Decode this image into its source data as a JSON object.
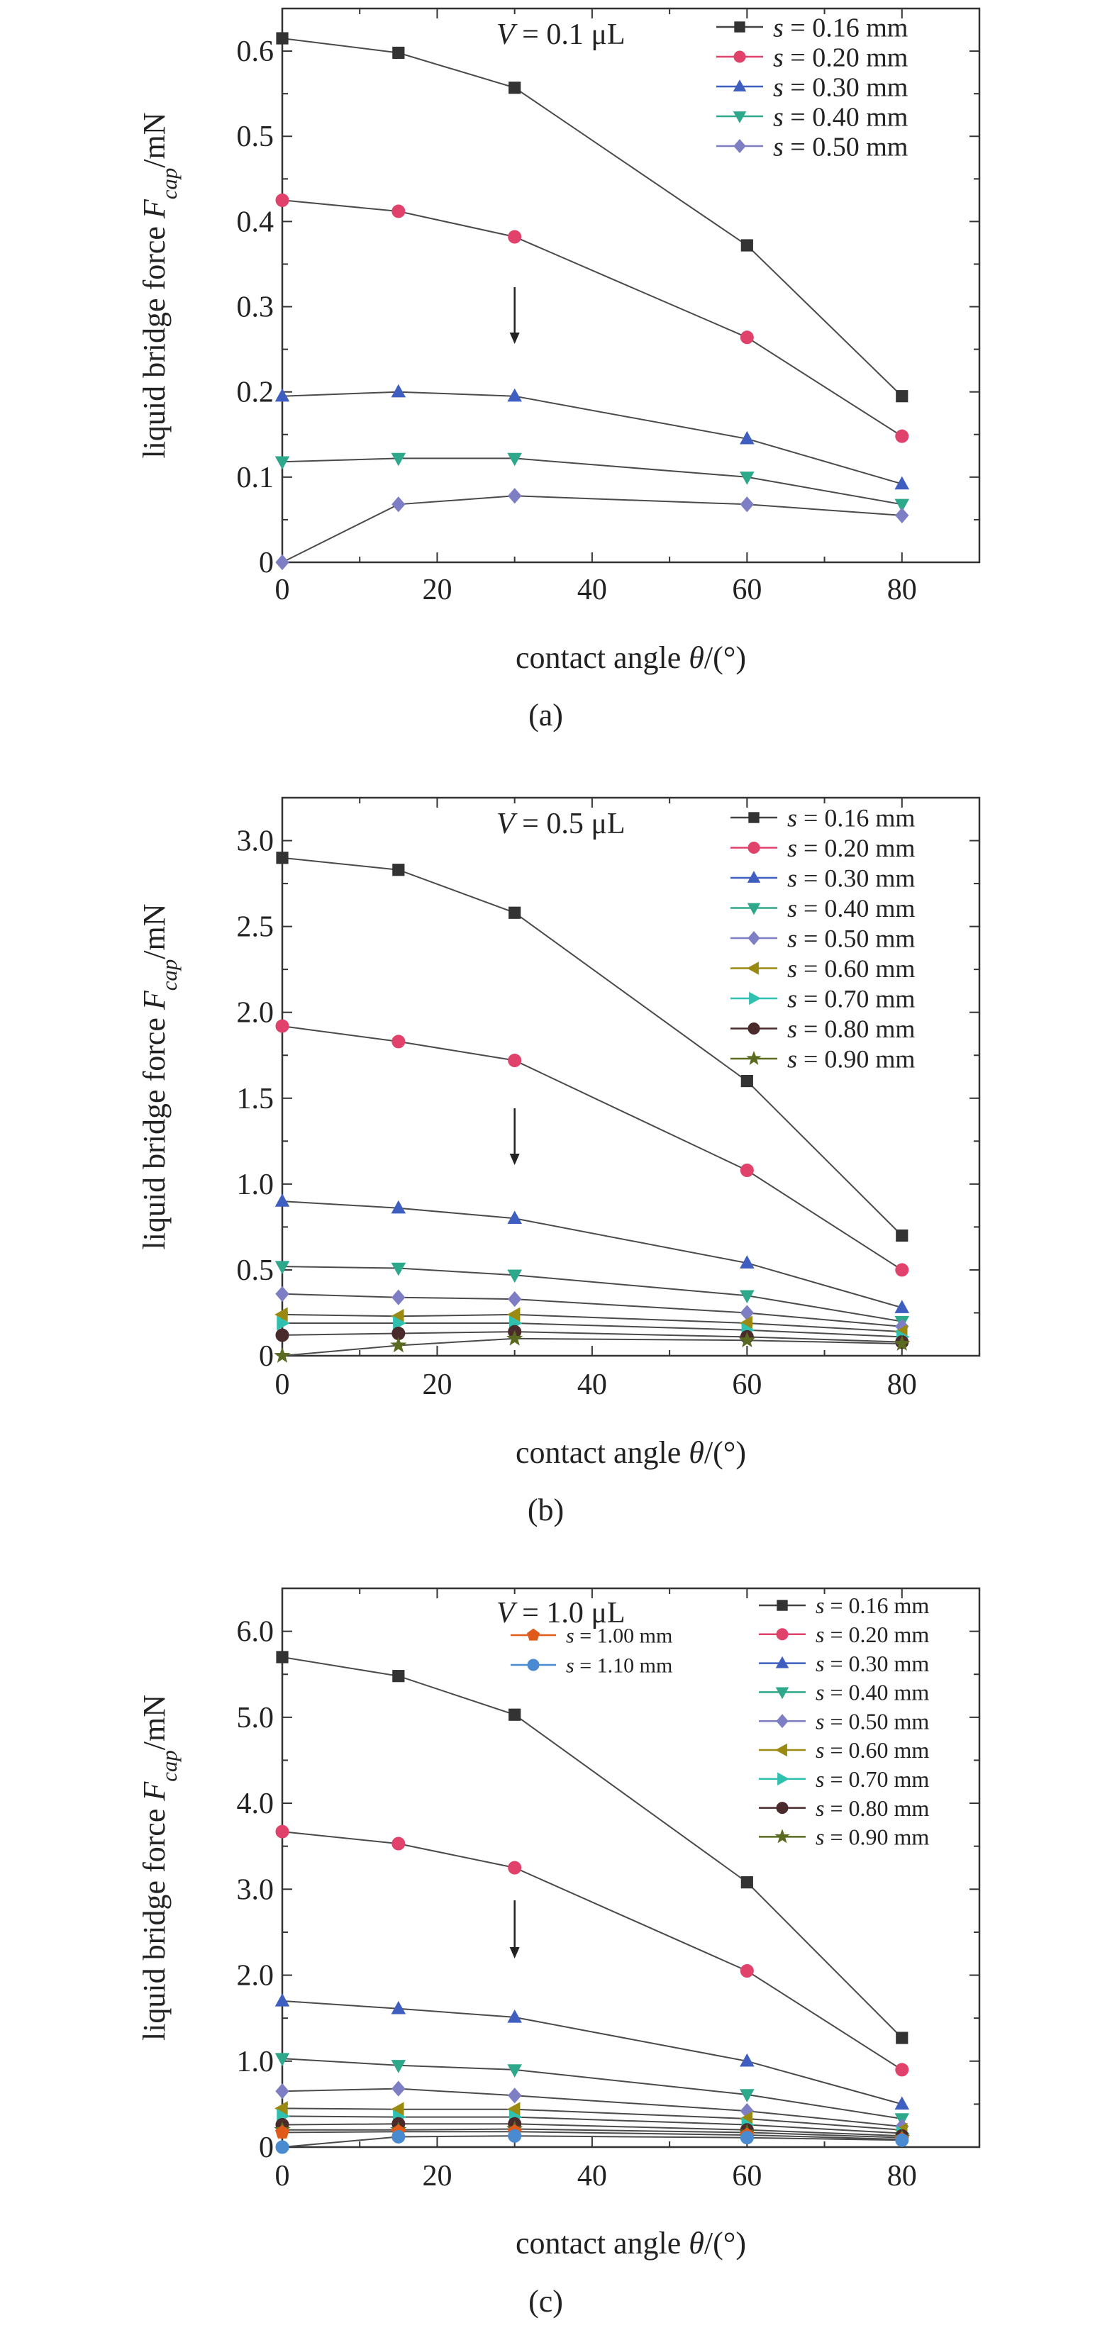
{
  "figure": {
    "panels": [
      "(a)",
      "(b)",
      "(c)"
    ]
  },
  "chart_data": [
    {
      "type": "line",
      "panel_label": "(a)",
      "annotation": {
        "var": "V",
        "text": " = 0.1 μL"
      },
      "xlabel": {
        "main": "contact angle ",
        "var": "θ",
        "unit": "/(°)"
      },
      "ylabel": {
        "main": "liquid bridge force ",
        "var": "F",
        "sub": "cap",
        "unit": "/mN"
      },
      "xlim": [
        0,
        90
      ],
      "ylim": [
        0,
        0.65
      ],
      "xticks": [
        "0",
        "20",
        "40",
        "60",
        "80"
      ],
      "yticks": [
        "0",
        "0.1",
        "0.2",
        "0.3",
        "0.4",
        "0.5",
        "0.6"
      ],
      "arrow_at_x": 30,
      "x": [
        0,
        15,
        30,
        60,
        80
      ],
      "series": [
        {
          "name": "s = 0.16 mm",
          "values": [
            0.615,
            0.598,
            0.557,
            0.372,
            0.195
          ],
          "color": "#333333",
          "marker": "square"
        },
        {
          "name": "s = 0.20 mm",
          "values": [
            0.425,
            0.412,
            0.382,
            0.264,
            0.148
          ],
          "color": "#e0426b",
          "marker": "circle"
        },
        {
          "name": "s = 0.30 mm",
          "values": [
            0.195,
            0.2,
            0.195,
            0.145,
            0.092
          ],
          "color": "#3f5fc0",
          "marker": "triangle-up"
        },
        {
          "name": "s = 0.40 mm",
          "values": [
            0.118,
            0.122,
            0.122,
            0.1,
            0.068
          ],
          "color": "#2da88a",
          "marker": "triangle-down"
        },
        {
          "name": "s = 0.50 mm",
          "values": [
            0.0,
            0.068,
            0.078,
            0.068,
            0.055
          ],
          "color": "#7d7ec4",
          "marker": "diamond"
        }
      ]
    },
    {
      "type": "line",
      "panel_label": "(b)",
      "annotation": {
        "var": "V",
        "text": " = 0.5 μL"
      },
      "xlabel": {
        "main": "contact angle ",
        "var": "θ",
        "unit": "/(°)"
      },
      "ylabel": {
        "main": "liquid bridge force ",
        "var": "F",
        "sub": "cap",
        "unit": "/mN"
      },
      "xlim": [
        0,
        90
      ],
      "ylim": [
        0,
        3.25
      ],
      "xticks": [
        "0",
        "20",
        "40",
        "60",
        "80"
      ],
      "yticks": [
        "0",
        "0.5",
        "1.0",
        "1.5",
        "2.0",
        "2.5",
        "3.0"
      ],
      "arrow_at_x": 30,
      "x": [
        0,
        15,
        30,
        60,
        80
      ],
      "series": [
        {
          "name": "s = 0.16 mm",
          "values": [
            2.9,
            2.83,
            2.58,
            1.6,
            0.7
          ],
          "color": "#333333",
          "marker": "square"
        },
        {
          "name": "s = 0.20 mm",
          "values": [
            1.92,
            1.83,
            1.72,
            1.08,
            0.5
          ],
          "color": "#e0426b",
          "marker": "circle"
        },
        {
          "name": "s = 0.30 mm",
          "values": [
            0.9,
            0.86,
            0.8,
            0.54,
            0.28
          ],
          "color": "#3f5fc0",
          "marker": "triangle-up"
        },
        {
          "name": "s = 0.40 mm",
          "values": [
            0.52,
            0.51,
            0.47,
            0.35,
            0.2
          ],
          "color": "#2da88a",
          "marker": "triangle-down"
        },
        {
          "name": "s = 0.50 mm",
          "values": [
            0.36,
            0.34,
            0.33,
            0.25,
            0.17
          ],
          "color": "#7d7ec4",
          "marker": "diamond"
        },
        {
          "name": "s = 0.60 mm",
          "values": [
            0.24,
            0.23,
            0.24,
            0.19,
            0.14
          ],
          "color": "#9a8a12",
          "marker": "triangle-left"
        },
        {
          "name": "s = 0.70 mm",
          "values": [
            0.19,
            0.19,
            0.19,
            0.15,
            0.11
          ],
          "color": "#30c0b0",
          "marker": "triangle-right"
        },
        {
          "name": "s = 0.80 mm",
          "values": [
            0.12,
            0.13,
            0.14,
            0.11,
            0.08
          ],
          "color": "#4a2a2a",
          "marker": "circle"
        },
        {
          "name": "s = 0.90 mm",
          "values": [
            0.0,
            0.06,
            0.1,
            0.09,
            0.07
          ],
          "color": "#5a6a20",
          "marker": "star"
        }
      ]
    },
    {
      "type": "line",
      "panel_label": "(c)",
      "annotation": {
        "var": "V",
        "text": " = 1.0 μL"
      },
      "xlabel": {
        "main": "contact angle ",
        "var": "θ",
        "unit": "/(°)"
      },
      "ylabel": {
        "main": "liquid bridge force ",
        "var": "F",
        "sub": "cap",
        "unit": "/mN"
      },
      "xlim": [
        0,
        90
      ],
      "ylim": [
        0,
        6.5
      ],
      "xticks": [
        "0",
        "20",
        "40",
        "60",
        "80"
      ],
      "yticks": [
        "0",
        "1.0",
        "2.0",
        "3.0",
        "4.0",
        "5.0",
        "6.0"
      ],
      "arrow_at_x": 30,
      "x": [
        0,
        15,
        30,
        60,
        80
      ],
      "series": [
        {
          "name": "s = 0.16 mm",
          "values": [
            5.7,
            5.48,
            5.03,
            3.08,
            1.27
          ],
          "color": "#333333",
          "marker": "square"
        },
        {
          "name": "s = 0.20 mm",
          "values": [
            3.67,
            3.53,
            3.25,
            2.05,
            0.9
          ],
          "color": "#e0426b",
          "marker": "circle"
        },
        {
          "name": "s = 0.30 mm",
          "values": [
            1.7,
            1.61,
            1.51,
            1.0,
            0.5
          ],
          "color": "#3f5fc0",
          "marker": "triangle-up"
        },
        {
          "name": "s = 0.40 mm",
          "values": [
            1.03,
            0.95,
            0.9,
            0.61,
            0.33
          ],
          "color": "#2da88a",
          "marker": "triangle-down"
        },
        {
          "name": "s = 0.50 mm",
          "values": [
            0.65,
            0.68,
            0.6,
            0.42,
            0.24
          ],
          "color": "#7d7ec4",
          "marker": "diamond"
        },
        {
          "name": "s = 0.60 mm",
          "values": [
            0.45,
            0.44,
            0.44,
            0.33,
            0.2
          ],
          "color": "#9a8a12",
          "marker": "triangle-left"
        },
        {
          "name": "s = 0.70 mm",
          "values": [
            0.36,
            0.35,
            0.35,
            0.26,
            0.16
          ],
          "color": "#30c0b0",
          "marker": "triangle-right"
        },
        {
          "name": "s = 0.80 mm",
          "values": [
            0.26,
            0.27,
            0.27,
            0.2,
            0.13
          ],
          "color": "#4a2a2a",
          "marker": "circle"
        },
        {
          "name": "s = 0.90 mm",
          "values": [
            0.2,
            0.2,
            0.21,
            0.17,
            0.11
          ],
          "color": "#5a6a20",
          "marker": "star"
        },
        {
          "name": "s = 1.00 mm",
          "values": [
            0.17,
            0.18,
            0.18,
            0.14,
            0.09
          ],
          "color": "#e05a1a",
          "marker": "pentagon"
        },
        {
          "name": "s = 1.10 mm",
          "values": [
            0.0,
            0.12,
            0.13,
            0.11,
            0.08
          ],
          "color": "#4a8ad0",
          "marker": "circle"
        }
      ]
    }
  ]
}
